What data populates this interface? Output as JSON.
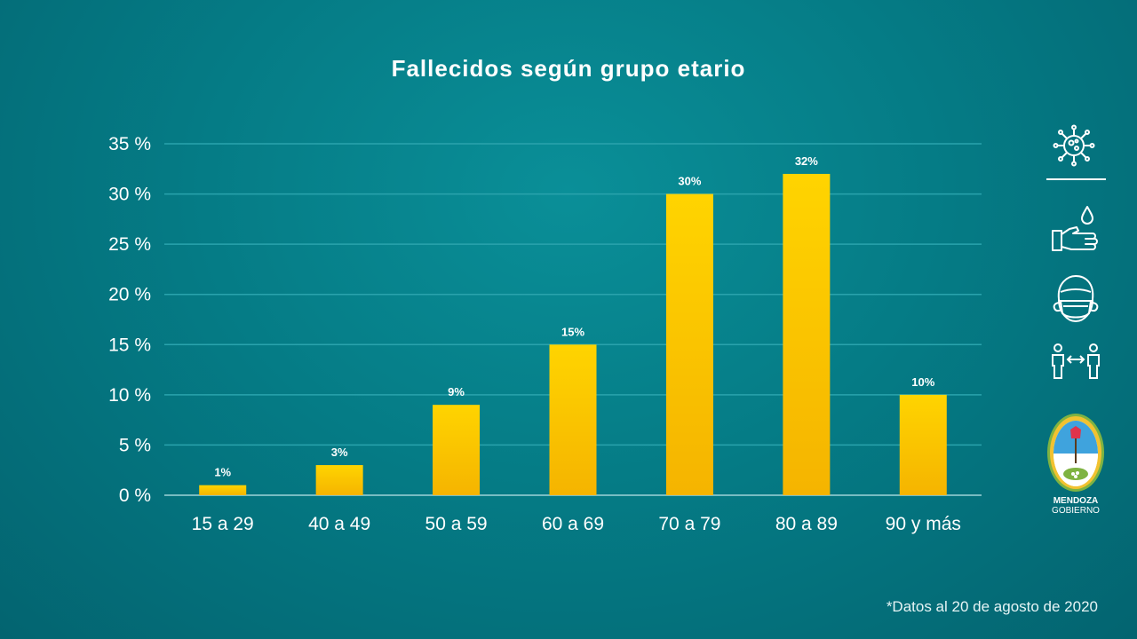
{
  "title": "Fallecidos según grupo etario",
  "footnote": "*Datos al 20 de agosto de 2020",
  "logo": {
    "line1": "MENDOZA",
    "line2": "GOBIERNO"
  },
  "icons": [
    "virus-icon",
    "handwash-icon",
    "face-mask-icon",
    "social-distance-icon",
    "mendoza-shield-logo"
  ],
  "colors": {
    "bar_top": "#ffd400",
    "bar_bottom": "#f5b400",
    "grid": "#2aa3ad",
    "background": "#057c86"
  },
  "chart_data": {
    "type": "bar",
    "title": "Fallecidos según grupo etario",
    "categories": [
      "15 a 29",
      "40 a 49",
      "50 a 59",
      "60 a 69",
      "70 a 79",
      "80 a 89",
      "90 y más"
    ],
    "values": [
      1,
      3,
      9,
      15,
      30,
      32,
      10
    ],
    "data_labels": [
      "1%",
      "3%",
      "9%",
      "15%",
      "30%",
      "32%",
      "10%"
    ],
    "yticks": [
      0,
      5,
      10,
      15,
      20,
      25,
      30,
      35
    ],
    "ytick_labels": [
      "0 %",
      "5 %",
      "10 %",
      "15 %",
      "20 %",
      "25 %",
      "30 %",
      "35 %"
    ],
    "ylim": [
      0,
      35
    ],
    "xlabel": "",
    "ylabel": "",
    "grid": true,
    "legend": "none"
  }
}
